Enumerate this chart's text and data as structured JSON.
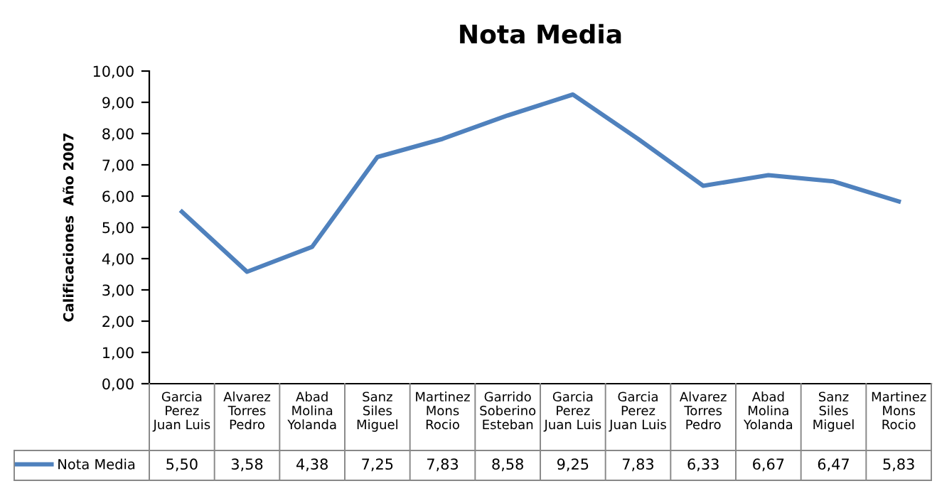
{
  "chart_data": {
    "type": "line",
    "title": "Nota Media",
    "ylabel": "Calificaciones  Año 2007",
    "categories": [
      "Garcia\nPerez\nJuan Luis",
      "Alvarez\nTorres\nPedro",
      "Abad\nMolina\nYolanda",
      "Sanz\nSiles\nMiguel",
      "Martinez\nMons\nRocio",
      "Garrido\nSoberino\nEsteban",
      "Garcia\nPerez\nJuan Luis",
      "Garcia\nPerez\nJuan Luis",
      "Alvarez\nTorres\nPedro",
      "Abad\nMolina\nYolanda",
      "Sanz\nSiles\nMiguel",
      "Martinez\nMons\nRocio"
    ],
    "series": [
      {
        "name": "Nota Media",
        "color": "#4f81bd",
        "values": [
          5.5,
          3.58,
          4.38,
          7.25,
          7.83,
          8.58,
          9.25,
          7.83,
          6.33,
          6.67,
          6.47,
          5.83
        ],
        "value_labels": [
          "5,50",
          "3,58",
          "4,38",
          "7,25",
          "7,83",
          "8,58",
          "9,25",
          "7,83",
          "6,33",
          "6,67",
          "6,47",
          "5,83"
        ]
      }
    ],
    "ylim": [
      0,
      10
    ],
    "yticks": [
      {
        "value": 0,
        "label": "0,00"
      },
      {
        "value": 1,
        "label": "1,00"
      },
      {
        "value": 2,
        "label": "2,00"
      },
      {
        "value": 3,
        "label": "3,00"
      },
      {
        "value": 4,
        "label": "4,00"
      },
      {
        "value": 5,
        "label": "5,00"
      },
      {
        "value": 6,
        "label": "6,00"
      },
      {
        "value": 7,
        "label": "7,00"
      },
      {
        "value": 8,
        "label": "8,00"
      },
      {
        "value": 9,
        "label": "9,00"
      },
      {
        "value": 10,
        "label": "10,00"
      }
    ],
    "legend": "bottom",
    "grid": false,
    "marker": "none",
    "line_style": "solid"
  }
}
